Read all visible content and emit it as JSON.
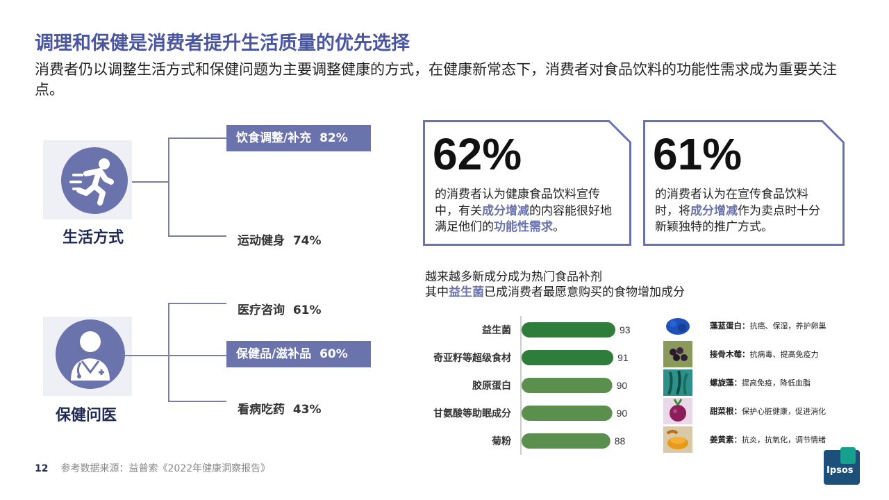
{
  "title": "调理和保健是消费者提升生活质量的优先选择",
  "subtitle": "消费者仍以调整生活方式和保健问题为主要调整健康的方式，在健康新常态下，消费者对食品饮料的功能性需求成为重要关注点。",
  "lifestyle": {
    "label": "生活方式",
    "items": [
      {
        "label": "饮食调整/补充",
        "value": "82%",
        "highlight": true
      },
      {
        "label": "运动健身",
        "value": "74%",
        "highlight": false
      }
    ]
  },
  "healthcare": {
    "label": "保健问医",
    "items": [
      {
        "label": "医疗咨询",
        "value": "61%",
        "highlight": false
      },
      {
        "label": "保健品/滋补品",
        "value": "60%",
        "highlight": true
      },
      {
        "label": "看病吃药",
        "value": "43%",
        "highlight": false
      }
    ]
  },
  "stat1": {
    "pct": "62%",
    "text_a": "的消费者认为健康食品饮料宣传中，有关",
    "emph_a": "成分增减",
    "text_b": "的内容能很好地满足他们的",
    "emph_b": "功能性需求",
    "text_c": "。"
  },
  "stat2": {
    "pct": "61%",
    "text_a": "的消费者认为在宣传食品饮料时，将",
    "emph_a": "成分增减",
    "text_b": "作为卖点时十分新颖独特的推广方式。"
  },
  "chart_note": {
    "line1": "越来越多新成分成为热门食品补剂",
    "line2_a": "其中",
    "line2_emph": "益生菌",
    "line2_b": "已成消费者最愿意购买的食物增加成分"
  },
  "chart_data": {
    "type": "bar",
    "orientation": "horizontal",
    "categories": [
      "益生菌",
      "奇亚籽等超级食材",
      "胶原蛋白",
      "甘氨酸等助眠成分",
      "菊粉"
    ],
    "values": [
      93,
      91,
      90,
      90,
      88
    ],
    "colors": [
      "#2e7d3a",
      "#2e7d3a",
      "#5a8f4e",
      "#5a8f4e",
      "#5a8f4e"
    ],
    "title": "",
    "xlabel": "",
    "ylabel": "",
    "grid": false
  },
  "ingredients": [
    {
      "name": "藻蓝蛋白",
      "benefit": "抗癌、保湿，养护卵巢",
      "icon": "spirulina-powder-icon"
    },
    {
      "name": "接骨木莓",
      "benefit": "抗病毒、提高免疫力",
      "icon": "elderberry-icon"
    },
    {
      "name": "螺旋藻",
      "benefit": "提高免疫，降低血脂",
      "icon": "seaweed-icon"
    },
    {
      "name": "甜菜根",
      "benefit": "保护心脏健康，促进消化",
      "icon": "beetroot-icon"
    },
    {
      "name": "姜黄素",
      "benefit": "抗炎，抗氧化，调节情绪",
      "icon": "turmeric-icon"
    }
  ],
  "footer": {
    "page": "12",
    "source": "参考数据来源：益普索《2022年健康洞察报告》"
  },
  "logo": {
    "text": "Ipsos"
  },
  "colors": {
    "accent": "#6b73ac",
    "title": "#4a56a0",
    "bar_dark": "#2e7d3a",
    "bar_light": "#5a8f4e"
  }
}
